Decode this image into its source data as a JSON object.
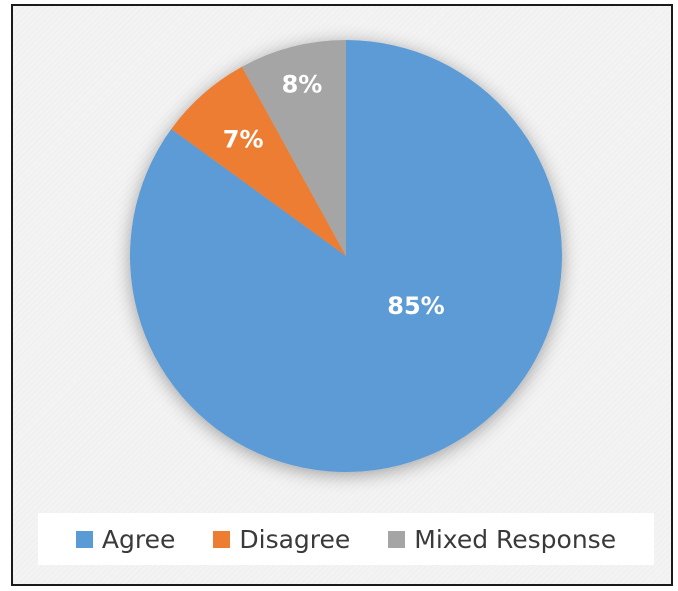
{
  "chart_data": {
    "type": "pie",
    "title": "",
    "series": [
      {
        "values": [
          85,
          7,
          8
        ]
      }
    ],
    "categories": [
      "Agree",
      "Disagree",
      "Mixed Response"
    ],
    "data_labels": [
      "85%",
      "7%",
      "8%"
    ],
    "colors": [
      "#5b9bd5",
      "#ed7d31",
      "#a5a5a5"
    ],
    "legend_position": "bottom",
    "legend": [
      {
        "label": "Agree",
        "color": "#5b9bd5"
      },
      {
        "label": "Disagree",
        "color": "#ed7d31"
      },
      {
        "label": "Mixed Response",
        "color": "#a5a5a5"
      }
    ]
  }
}
